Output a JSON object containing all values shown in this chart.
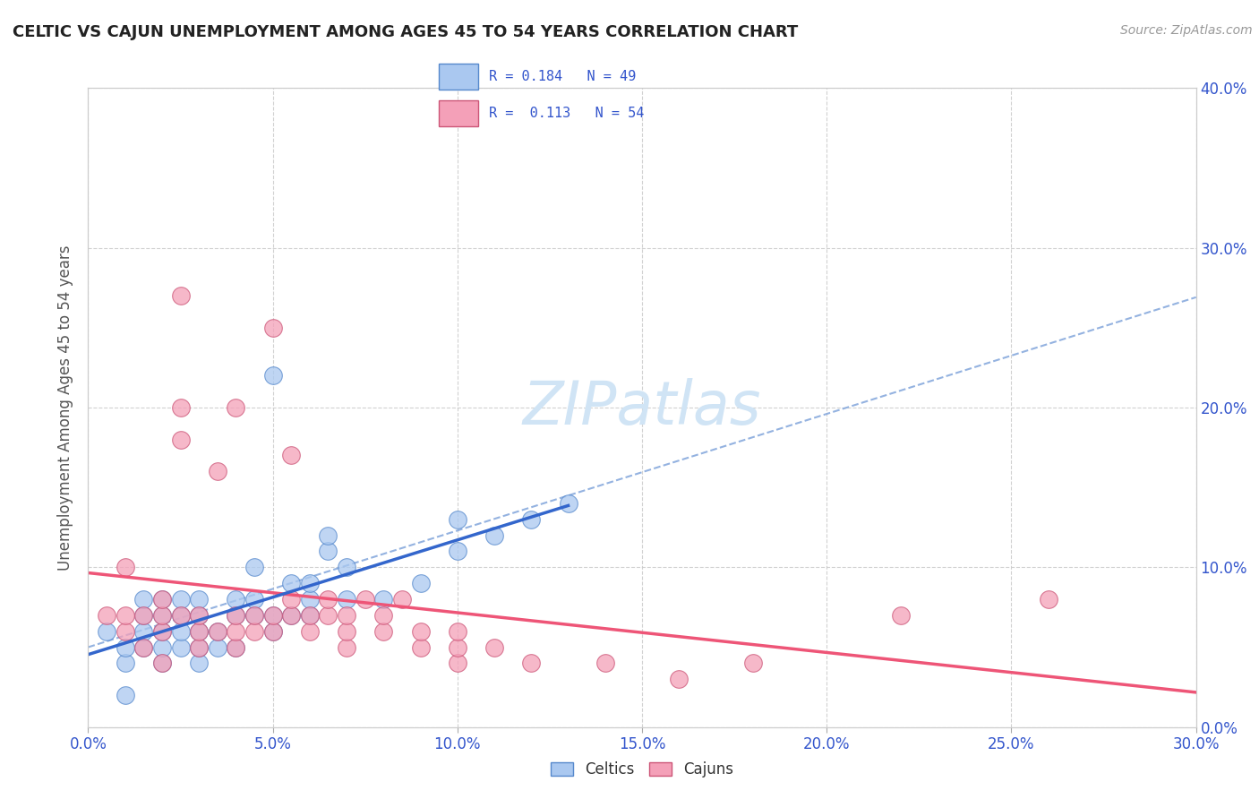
{
  "title": "CELTIC VS CAJUN UNEMPLOYMENT AMONG AGES 45 TO 54 YEARS CORRELATION CHART",
  "source": "Source: ZipAtlas.com",
  "xmin": 0.0,
  "xmax": 0.3,
  "ymin": 0.0,
  "ymax": 0.4,
  "celtics_color": "#aac8f0",
  "cajuns_color": "#f4a0b8",
  "celtics_edge": "#5588cc",
  "cajuns_edge": "#cc5577",
  "trend_celtic_color": "#3366cc",
  "trend_cajun_color": "#ee5577",
  "trend_dashed_color": "#88aadd",
  "r_celtic": 0.184,
  "n_celtic": 49,
  "r_cajun": 0.113,
  "n_cajun": 54,
  "legend_text_color": "#3355cc",
  "celtics_x": [
    0.005,
    0.01,
    0.01,
    0.01,
    0.015,
    0.015,
    0.015,
    0.015,
    0.02,
    0.02,
    0.02,
    0.02,
    0.02,
    0.025,
    0.025,
    0.025,
    0.025,
    0.03,
    0.03,
    0.03,
    0.03,
    0.03,
    0.035,
    0.035,
    0.04,
    0.04,
    0.04,
    0.045,
    0.045,
    0.045,
    0.05,
    0.05,
    0.05,
    0.055,
    0.055,
    0.06,
    0.06,
    0.06,
    0.065,
    0.065,
    0.07,
    0.07,
    0.08,
    0.09,
    0.1,
    0.1,
    0.11,
    0.12,
    0.13
  ],
  "celtics_y": [
    0.06,
    0.04,
    0.05,
    0.02,
    0.05,
    0.06,
    0.07,
    0.08,
    0.04,
    0.05,
    0.06,
    0.07,
    0.08,
    0.05,
    0.06,
    0.07,
    0.08,
    0.04,
    0.05,
    0.06,
    0.07,
    0.08,
    0.05,
    0.06,
    0.05,
    0.07,
    0.08,
    0.07,
    0.08,
    0.1,
    0.06,
    0.07,
    0.22,
    0.07,
    0.09,
    0.07,
    0.08,
    0.09,
    0.11,
    0.12,
    0.08,
    0.1,
    0.08,
    0.09,
    0.11,
    0.13,
    0.12,
    0.13,
    0.14
  ],
  "cajuns_x": [
    0.005,
    0.01,
    0.01,
    0.01,
    0.015,
    0.015,
    0.02,
    0.02,
    0.02,
    0.02,
    0.025,
    0.025,
    0.025,
    0.025,
    0.03,
    0.03,
    0.03,
    0.035,
    0.035,
    0.04,
    0.04,
    0.04,
    0.04,
    0.045,
    0.045,
    0.05,
    0.05,
    0.05,
    0.055,
    0.055,
    0.055,
    0.06,
    0.06,
    0.065,
    0.065,
    0.07,
    0.07,
    0.07,
    0.075,
    0.08,
    0.08,
    0.085,
    0.09,
    0.09,
    0.1,
    0.1,
    0.1,
    0.11,
    0.12,
    0.14,
    0.16,
    0.18,
    0.22,
    0.26
  ],
  "cajuns_y": [
    0.07,
    0.06,
    0.07,
    0.1,
    0.05,
    0.07,
    0.04,
    0.06,
    0.07,
    0.08,
    0.07,
    0.18,
    0.2,
    0.27,
    0.05,
    0.06,
    0.07,
    0.06,
    0.16,
    0.05,
    0.06,
    0.07,
    0.2,
    0.06,
    0.07,
    0.06,
    0.07,
    0.25,
    0.07,
    0.08,
    0.17,
    0.06,
    0.07,
    0.07,
    0.08,
    0.05,
    0.06,
    0.07,
    0.08,
    0.06,
    0.07,
    0.08,
    0.05,
    0.06,
    0.04,
    0.05,
    0.06,
    0.05,
    0.04,
    0.04,
    0.03,
    0.04,
    0.07,
    0.08
  ],
  "watermark_text": "ZIPatlas",
  "watermark_color": "#d0e4f5"
}
